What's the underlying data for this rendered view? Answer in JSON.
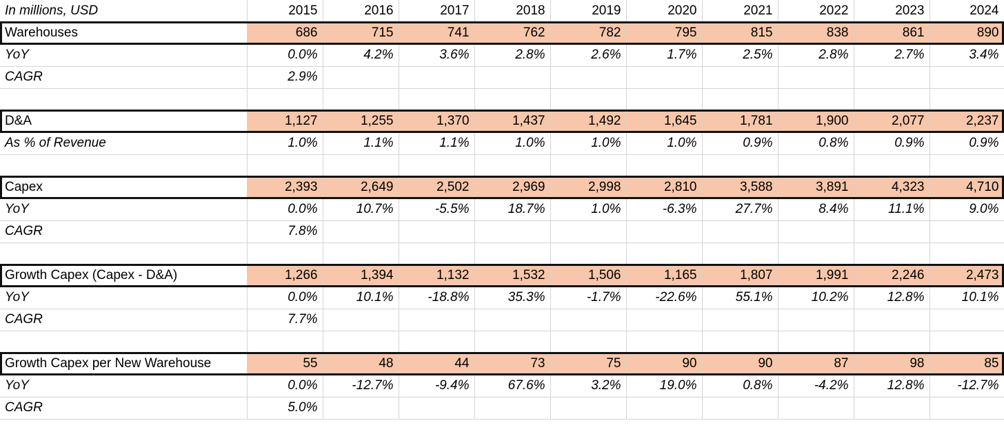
{
  "header": {
    "label": "In millions, USD",
    "years": [
      "2015",
      "2016",
      "2017",
      "2018",
      "2019",
      "2020",
      "2021",
      "2022",
      "2023",
      "2024"
    ]
  },
  "rows": [
    {
      "label": "Warehouses",
      "values": [
        "686",
        "715",
        "741",
        "762",
        "782",
        "795",
        "815",
        "838",
        "861",
        "890"
      ]
    },
    {
      "label": "YoY",
      "values": [
        "0.0%",
        "4.2%",
        "3.6%",
        "2.8%",
        "2.6%",
        "1.7%",
        "2.5%",
        "2.8%",
        "2.7%",
        "3.4%"
      ]
    },
    {
      "label": "CAGR",
      "values": [
        "2.9%",
        "",
        "",
        "",
        "",
        "",
        "",
        "",
        "",
        ""
      ]
    },
    {
      "label": "",
      "values": [
        "",
        "",
        "",
        "",
        "",
        "",
        "",
        "",
        "",
        ""
      ]
    },
    {
      "label": "D&A",
      "values": [
        "1,127",
        "1,255",
        "1,370",
        "1,437",
        "1,492",
        "1,645",
        "1,781",
        "1,900",
        "2,077",
        "2,237"
      ]
    },
    {
      "label": "As % of Revenue",
      "values": [
        "1.0%",
        "1.1%",
        "1.1%",
        "1.0%",
        "1.0%",
        "1.0%",
        "0.9%",
        "0.8%",
        "0.9%",
        "0.9%"
      ]
    },
    {
      "label": "",
      "values": [
        "",
        "",
        "",
        "",
        "",
        "",
        "",
        "",
        "",
        ""
      ]
    },
    {
      "label": "Capex",
      "values": [
        "2,393",
        "2,649",
        "2,502",
        "2,969",
        "2,998",
        "2,810",
        "3,588",
        "3,891",
        "4,323",
        "4,710"
      ]
    },
    {
      "label": "YoY",
      "values": [
        "0.0%",
        "10.7%",
        "-5.5%",
        "18.7%",
        "1.0%",
        "-6.3%",
        "27.7%",
        "8.4%",
        "11.1%",
        "9.0%"
      ]
    },
    {
      "label": "CAGR",
      "values": [
        "7.8%",
        "",
        "",
        "",
        "",
        "",
        "",
        "",
        "",
        ""
      ]
    },
    {
      "label": "",
      "values": [
        "",
        "",
        "",
        "",
        "",
        "",
        "",
        "",
        "",
        ""
      ]
    },
    {
      "label": "Growth Capex (Capex - D&A)",
      "values": [
        "1,266",
        "1,394",
        "1,132",
        "1,532",
        "1,506",
        "1,165",
        "1,807",
        "1,991",
        "2,246",
        "2,473"
      ]
    },
    {
      "label": "YoY",
      "values": [
        "0.0%",
        "10.1%",
        "-18.8%",
        "35.3%",
        "-1.7%",
        "-22.6%",
        "55.1%",
        "10.2%",
        "12.8%",
        "10.1%"
      ]
    },
    {
      "label": "CAGR",
      "values": [
        "7.7%",
        "",
        "",
        "",
        "",
        "",
        "",
        "",
        "",
        ""
      ]
    },
    {
      "label": "",
      "values": [
        "",
        "",
        "",
        "",
        "",
        "",
        "",
        "",
        "",
        ""
      ]
    },
    {
      "label": "Growth Capex per New Warehouse",
      "values": [
        "55",
        "48",
        "44",
        "73",
        "75",
        "90",
        "90",
        "87",
        "98",
        "85"
      ]
    },
    {
      "label": "YoY",
      "values": [
        "0.0%",
        "-12.7%",
        "-9.4%",
        "67.6%",
        "3.2%",
        "19.0%",
        "0.8%",
        "-4.2%",
        "12.8%",
        "-12.7%"
      ]
    },
    {
      "label": "CAGR",
      "values": [
        "5.0%",
        "",
        "",
        "",
        "",
        "",
        "",
        "",
        "",
        ""
      ]
    }
  ],
  "highlight_color": "#f7c6ab"
}
